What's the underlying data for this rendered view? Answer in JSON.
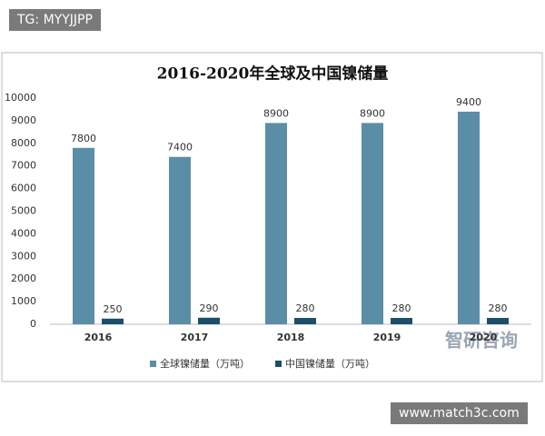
{
  "chart_data": {
    "type": "bar",
    "title": "2016-2020年全球及中国镍储量",
    "categories": [
      "2016",
      "2017",
      "2018",
      "2019",
      "2020"
    ],
    "series": [
      {
        "name": "全球镍储量（万吨）",
        "color": "#5a8ea6",
        "values": [
          7800,
          7400,
          8900,
          8900,
          9400
        ]
      },
      {
        "name": "中国镍储量（万吨）",
        "color": "#1d4f6b",
        "values": [
          250,
          290,
          280,
          280,
          280
        ]
      }
    ],
    "ylim": [
      0,
      10000
    ],
    "yticks": [
      0,
      1000,
      2000,
      3000,
      4000,
      5000,
      6000,
      7000,
      8000,
      9000,
      10000
    ],
    "grid": false,
    "legend": "bottom",
    "data_labels": true
  },
  "overlays": {
    "tag": "TG: MYYJJPP",
    "site": "www.match3c.com",
    "brand": "智研咨询"
  }
}
